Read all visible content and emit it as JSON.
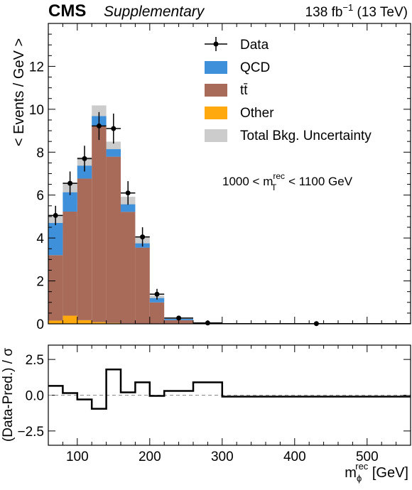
{
  "header": {
    "experiment": "CMS",
    "tag": "Supplementary",
    "lumi_prefix": "138 fb",
    "lumi_exp": "−1",
    "lumi_suffix": " (13 TeV)"
  },
  "region": {
    "lo": "1000 < m",
    "sup": "rec",
    "sub": "T",
    "hi": " < 1100 GeV"
  },
  "xaxis_label": {
    "main": "m",
    "sub": "ϕ",
    "sup": "rec",
    "unit": " [GeV]"
  },
  "chart_data": [
    {
      "type": "bar",
      "stacked": true,
      "ylabel": "< Events / GeV >",
      "ylim": [
        0,
        14
      ],
      "yticks": [
        0,
        2,
        4,
        6,
        8,
        10,
        12
      ],
      "xlim": [
        60,
        560
      ],
      "bin_edges": [
        60,
        80,
        100,
        120,
        140,
        160,
        180,
        200,
        220,
        260,
        300,
        560
      ],
      "series": [
        {
          "name": "Other",
          "color": "#ffa90e",
          "values": [
            0.15,
            0.38,
            0.17,
            0.08,
            0.04,
            0.02,
            0.01,
            0.0,
            0.0,
            0.0,
            0.0
          ]
        },
        {
          "name": "tt̄",
          "color": "#a96b59",
          "values": [
            3.05,
            4.85,
            6.6,
            9.12,
            7.75,
            5.2,
            3.54,
            1.0,
            0.17,
            0.0,
            0.0
          ]
        },
        {
          "name": "QCD",
          "color": "#3f90da",
          "values": [
            1.5,
            0.9,
            0.6,
            0.48,
            0.35,
            0.35,
            0.2,
            0.2,
            0.06,
            0.0,
            0.0
          ]
        }
      ],
      "total_uncertainty": {
        "name": "Total Bkg. Uncertainty",
        "color": "#cccccc",
        "values": [
          0.35,
          0.45,
          0.4,
          0.5,
          0.35,
          0.35,
          0.3,
          0.12,
          0.04,
          0.0,
          0.0
        ]
      },
      "data": {
        "name": "Data",
        "x": [
          70,
          90,
          110,
          130,
          150,
          170,
          190,
          210,
          240,
          280,
          430
        ],
        "y": [
          5.05,
          6.55,
          7.7,
          9.22,
          9.1,
          6.1,
          4.05,
          1.38,
          0.27,
          0.04,
          0.01
        ],
        "yerr": [
          0.45,
          0.55,
          0.6,
          0.65,
          0.7,
          0.55,
          0.45,
          0.25,
          0.05,
          0.02,
          0.005
        ]
      },
      "legend": {
        "position": "top-right",
        "order": [
          "Data",
          "QCD",
          "tt̄",
          "Other",
          "Total Bkg. Uncertainty"
        ]
      }
    },
    {
      "type": "line",
      "style": "step",
      "ylabel": "(Data-Pred.) / σ",
      "ylim": [
        -3.5,
        3.5
      ],
      "yticks": [
        -2.5,
        0.0,
        2.5
      ],
      "ytick_labels": [
        "−2.5",
        "0.0",
        "2.5"
      ],
      "xlim": [
        60,
        560
      ],
      "xticks": [
        100,
        200,
        300,
        400,
        500
      ],
      "bin_edges": [
        60,
        80,
        100,
        120,
        140,
        160,
        180,
        200,
        220,
        260,
        300,
        560
      ],
      "values": [
        0.65,
        0.15,
        -0.3,
        -0.95,
        1.8,
        0.2,
        0.9,
        -0.05,
        0.3,
        0.9,
        -0.1
      ],
      "reference_line": 0
    }
  ]
}
